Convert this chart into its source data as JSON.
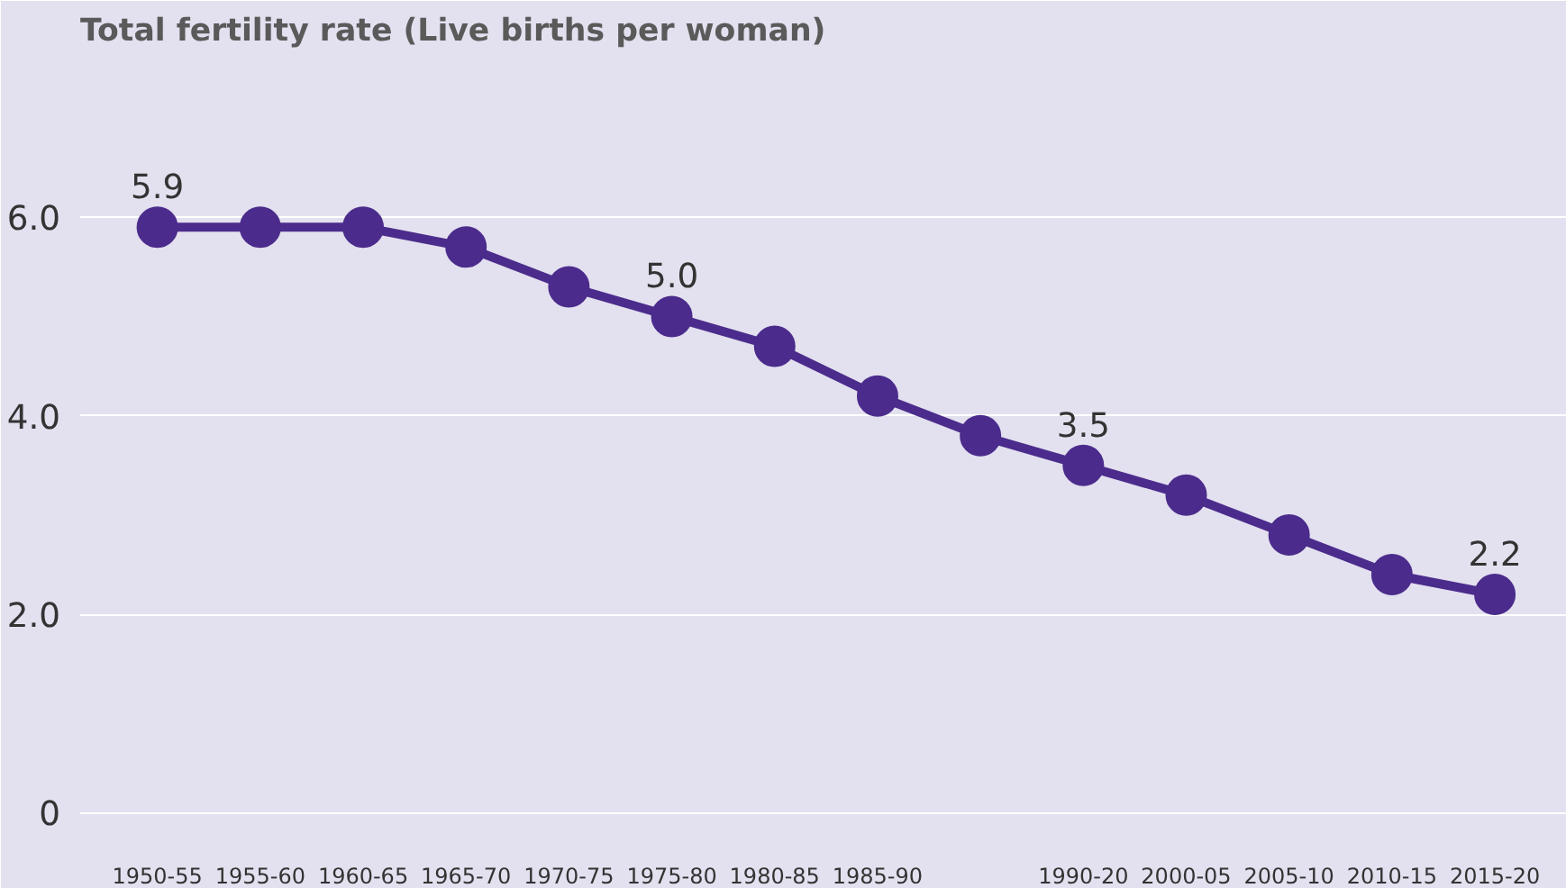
{
  "chart_data": {
    "type": "line",
    "title": "Total fertility rate (Live births per woman)",
    "categories": [
      "1950-55",
      "1955-60",
      "1960-65",
      "1965-70",
      "1970-75",
      "1975-80",
      "1980-85",
      "1985-90",
      null,
      "1990-20",
      "2000-05",
      "2005-10",
      "2010-15",
      "2015-20"
    ],
    "series": [
      {
        "color": "#4b2c8c",
        "values": [
          5.9,
          5.9,
          5.9,
          5.7,
          5.3,
          5.0,
          4.7,
          4.2,
          3.8,
          3.5,
          3.2,
          2.8,
          2.4,
          2.2
        ],
        "value_labels": [
          "5.9",
          null,
          null,
          null,
          null,
          "5.0",
          null,
          null,
          null,
          "3.5",
          null,
          null,
          null,
          "2.2"
        ]
      }
    ],
    "ylim": [
      -0.35,
      7.6
    ],
    "yticks": [
      {
        "value": 0,
        "label": "0"
      },
      {
        "value": 2,
        "label": "2.0"
      },
      {
        "value": 4,
        "label": "4.0"
      },
      {
        "value": 6,
        "label": "6.0"
      }
    ],
    "grid": "y",
    "marker": "circle",
    "line_style": "solid"
  }
}
